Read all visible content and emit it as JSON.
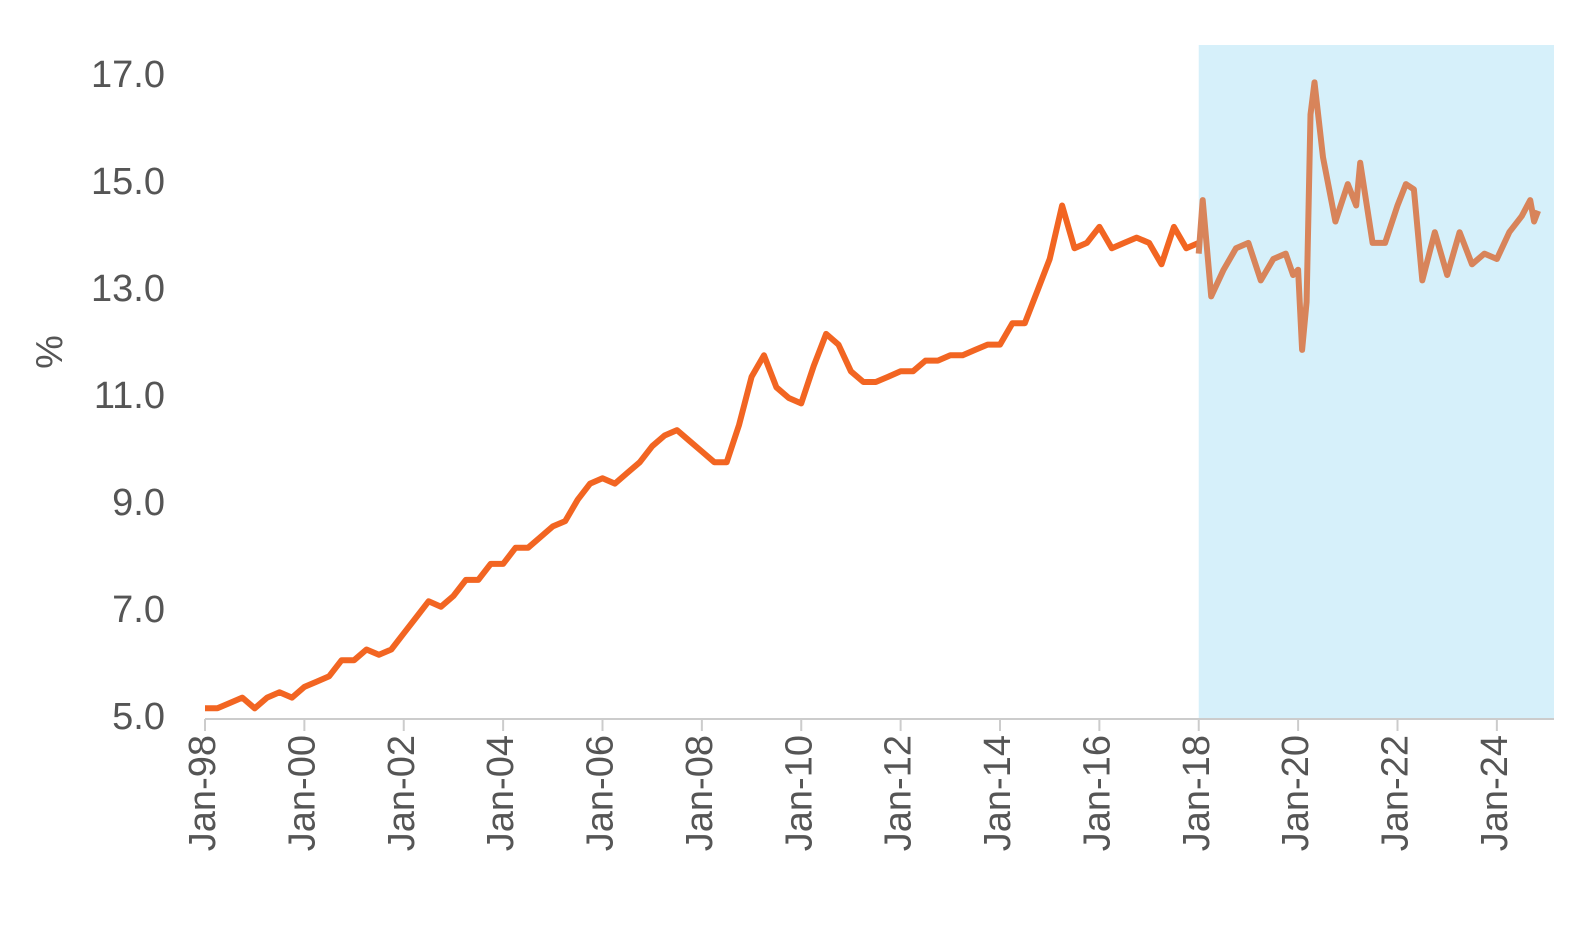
{
  "chart_data": {
    "type": "line",
    "y_label": "%",
    "xlim": [
      1998,
      2025.15
    ],
    "ylim": [
      5,
      17.6
    ],
    "xticks": [
      {
        "value": 1998,
        "label": "Jan-98"
      },
      {
        "value": 2000,
        "label": "Jan-00"
      },
      {
        "value": 2002,
        "label": "Jan-02"
      },
      {
        "value": 2004,
        "label": "Jan-04"
      },
      {
        "value": 2006,
        "label": "Jan-06"
      },
      {
        "value": 2008,
        "label": "Jan-08"
      },
      {
        "value": 2010,
        "label": "Jan-10"
      },
      {
        "value": 2012,
        "label": "Jan-12"
      },
      {
        "value": 2014,
        "label": "Jan-14"
      },
      {
        "value": 2016,
        "label": "Jan-16"
      },
      {
        "value": 2018,
        "label": "Jan-18"
      },
      {
        "value": 2020,
        "label": "Jan-20"
      },
      {
        "value": 2022,
        "label": "Jan-22"
      },
      {
        "value": 2024,
        "label": "Jan-24"
      }
    ],
    "yticks": [
      {
        "value": 5,
        "label": "5.0"
      },
      {
        "value": 7,
        "label": "7.0"
      },
      {
        "value": 9,
        "label": "9.0"
      },
      {
        "value": 11,
        "label": "11.0"
      },
      {
        "value": 13,
        "label": "13.0"
      },
      {
        "value": 15,
        "label": "15.0"
      },
      {
        "value": 17,
        "label": "17.0"
      }
    ],
    "shade": {
      "from": 2018,
      "to": 2025.15,
      "color": "#d6f0fa"
    },
    "series": [
      {
        "color": "#f26522",
        "x": [
          1998,
          1998.25,
          1998.5,
          1998.75,
          1999,
          1999.25,
          1999.5,
          1999.75,
          2000,
          2000.25,
          2000.5,
          2000.75,
          2001,
          2001.25,
          2001.5,
          2001.75,
          2002,
          2002.25,
          2002.5,
          2002.75,
          2003,
          2003.25,
          2003.5,
          2003.75,
          2004,
          2004.25,
          2004.5,
          2004.75,
          2005,
          2005.25,
          2005.5,
          2005.75,
          2006,
          2006.25,
          2006.5,
          2006.75,
          2007,
          2007.25,
          2007.5,
          2007.75,
          2008,
          2008.25,
          2008.5,
          2008.75,
          2009,
          2009.25,
          2009.5,
          2009.75,
          2010,
          2010.25,
          2010.5,
          2010.75,
          2011,
          2011.25,
          2011.5,
          2011.75,
          2012,
          2012.25,
          2012.5,
          2012.75,
          2013,
          2013.25,
          2013.5,
          2013.75,
          2014,
          2014.25,
          2014.5,
          2014.75,
          2015,
          2015.25,
          2015.5,
          2015.75,
          2016,
          2016.25,
          2016.5,
          2016.75,
          2017,
          2017.25,
          2017.5,
          2017.75,
          2018
        ],
        "values": [
          5.2,
          5.2,
          5.3,
          5.4,
          5.2,
          5.4,
          5.5,
          5.4,
          5.6,
          5.7,
          5.8,
          6.1,
          6.1,
          6.3,
          6.2,
          6.3,
          6.6,
          6.9,
          7.2,
          7.1,
          7.3,
          7.6,
          7.6,
          7.9,
          7.9,
          8.2,
          8.2,
          8.4,
          8.6,
          8.7,
          9.1,
          9.4,
          9.5,
          9.4,
          9.6,
          9.8,
          10.1,
          10.3,
          10.4,
          10.2,
          10.0,
          9.8,
          9.8,
          10.5,
          11.4,
          11.8,
          11.2,
          11.0,
          10.9,
          11.6,
          12.2,
          12.0,
          11.5,
          11.3,
          11.3,
          11.4,
          11.5,
          11.5,
          11.7,
          11.7,
          11.8,
          11.8,
          11.9,
          12.0,
          12.0,
          12.4,
          12.4,
          13.0,
          13.6,
          14.6,
          13.8,
          13.9,
          14.2,
          13.8,
          13.9,
          14.0,
          13.9,
          13.5,
          14.2,
          13.8,
          13.9
        ]
      },
      {
        "color": "#d8845a",
        "x": [
          2018,
          2018.08,
          2018.25,
          2018.5,
          2018.75,
          2019,
          2019.25,
          2019.5,
          2019.75,
          2019.9,
          2020,
          2020.08,
          2020.17,
          2020.25,
          2020.33,
          2020.5,
          2020.75,
          2021,
          2021.17,
          2021.25,
          2021.5,
          2021.75,
          2022,
          2022.17,
          2022.33,
          2022.5,
          2022.75,
          2023,
          2023.25,
          2023.5,
          2023.75,
          2024,
          2024.25,
          2024.5,
          2024.67,
          2024.75,
          2024.83
        ],
        "values": [
          13.7,
          14.7,
          12.9,
          13.4,
          13.8,
          13.9,
          13.2,
          13.6,
          13.7,
          13.3,
          13.4,
          11.9,
          12.8,
          16.3,
          16.9,
          15.5,
          14.3,
          15.0,
          14.6,
          15.4,
          13.9,
          13.9,
          14.6,
          15.0,
          14.9,
          13.2,
          14.1,
          13.3,
          14.1,
          13.5,
          13.7,
          13.6,
          14.1,
          14.4,
          14.7,
          14.3,
          14.5
        ]
      }
    ]
  }
}
